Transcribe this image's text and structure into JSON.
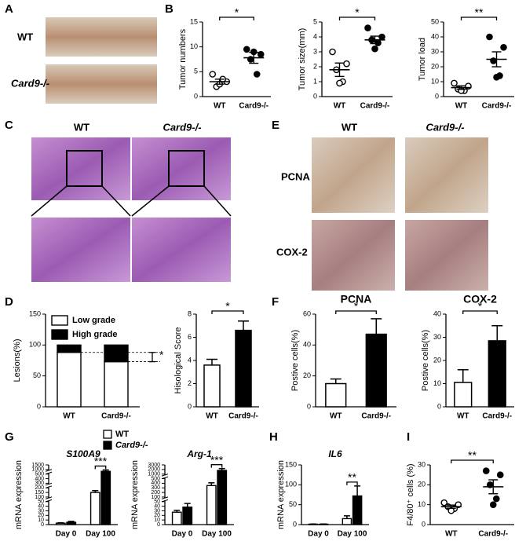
{
  "panel_labels": [
    "A",
    "B",
    "C",
    "D",
    "E",
    "F",
    "G",
    "H",
    "I"
  ],
  "photo_a": {
    "rows": [
      "WT",
      "Card9-/-"
    ]
  },
  "photo_c": {
    "columns": [
      "WT",
      "Card9-/-"
    ]
  },
  "photo_e": {
    "columns": [
      "WT",
      "Card9-/-"
    ],
    "rows": [
      "PCNA",
      "COX-2"
    ]
  },
  "chart_data": [
    {
      "type": "dot",
      "ylabel": "Tumor numbers",
      "categories": [
        "WT",
        "Card9-/-"
      ],
      "points": [
        [
          4.5,
          3,
          2,
          3.5,
          2.5
        ],
        [
          9.5,
          8.5,
          7.5,
          4.5,
          9
        ]
      ],
      "means": [
        3,
        7.8
      ],
      "errors": [
        0.5,
        1.1
      ],
      "markers": [
        "open",
        "filled"
      ],
      "ylim": [
        0,
        15
      ],
      "yticks": [
        0,
        5,
        10,
        15
      ],
      "significance": "*"
    },
    {
      "type": "dot",
      "ylabel": "Tumor size(mm)",
      "categories": [
        "WT",
        "Card9-/-"
      ],
      "points": [
        [
          3,
          2.2,
          1.8,
          1,
          0.9
        ],
        [
          4.6,
          4,
          3.8,
          3.6,
          3.2
        ]
      ],
      "means": [
        1.8,
        3.8
      ],
      "errors": [
        0.45,
        0.25
      ],
      "markers": [
        "open",
        "filled"
      ],
      "ylim": [
        0,
        5
      ],
      "yticks": [
        0,
        1,
        2,
        3,
        4,
        5
      ],
      "significance": "*"
    },
    {
      "type": "dot",
      "ylabel": "Tumor load",
      "categories": [
        "WT",
        "Card9-/-"
      ],
      "points": [
        [
          9,
          7,
          5,
          4,
          4
        ],
        [
          40,
          33,
          24,
          14,
          13
        ]
      ],
      "means": [
        6,
        25
      ],
      "errors": [
        1.2,
        5
      ],
      "markers": [
        "open",
        "filled"
      ],
      "ylim": [
        0,
        50
      ],
      "yticks": [
        0,
        10,
        20,
        30,
        40,
        50
      ],
      "significance": "**"
    },
    {
      "type": "stacked_bar",
      "ylabel": "Lesions(%)",
      "categories": [
        "WT",
        "Card9-/-"
      ],
      "series": [
        {
          "name": "Low grade",
          "color": "#ffffff",
          "values": [
            88,
            73
          ]
        },
        {
          "name": "High grade",
          "color": "#000000",
          "values": [
            12,
            27
          ]
        }
      ],
      "ylim": [
        0,
        150
      ],
      "yticks": [
        0,
        50,
        100,
        150
      ],
      "significance": "*"
    },
    {
      "type": "bar",
      "ylabel": "Hisological Score",
      "categories": [
        "WT",
        "Card9-/-"
      ],
      "values": [
        3.6,
        6.6
      ],
      "errors": [
        0.5,
        0.8
      ],
      "colors": [
        "#ffffff",
        "#000000"
      ],
      "ylim": [
        0,
        8
      ],
      "yticks": [
        0,
        2,
        4,
        6,
        8
      ],
      "significance": "*"
    },
    {
      "type": "bar",
      "title": "PCNA",
      "ylabel": "Postive cells(%)",
      "categories": [
        "WT",
        "Card9-/-"
      ],
      "values": [
        15,
        47
      ],
      "errors": [
        3,
        10
      ],
      "colors": [
        "#ffffff",
        "#000000"
      ],
      "ylim": [
        0,
        60
      ],
      "yticks": [
        0,
        20,
        40,
        60
      ],
      "significance": "*"
    },
    {
      "type": "bar",
      "title": "COX-2",
      "ylabel": "Postive cells(%)",
      "categories": [
        "WT",
        "Card9-/-"
      ],
      "values": [
        10.5,
        28.5
      ],
      "errors": [
        5.5,
        6.5
      ],
      "colors": [
        "#ffffff",
        "#000000"
      ],
      "ylim": [
        0,
        40
      ],
      "yticks": [
        0,
        10,
        20,
        30,
        40
      ],
      "significance": "*"
    },
    {
      "type": "grouped_bar",
      "title": "S100A9",
      "ylabel": "mRNA expression",
      "categories": [
        "Day 0",
        "Day 100"
      ],
      "series": [
        {
          "name": "WT",
          "color": "#ffffff",
          "values": [
            3,
            150
          ],
          "errors": [
            1,
            20
          ]
        },
        {
          "name": "Card9-/-",
          "color": "#000000",
          "values": [
            5,
            800
          ],
          "errors": [
            2,
            150
          ]
        }
      ],
      "ylim": [
        0,
        1500
      ],
      "yticks": [
        0,
        10,
        20,
        30,
        40,
        50,
        100,
        150,
        200,
        300,
        400,
        500,
        1000,
        1500
      ],
      "ybreaks": [
        50,
        200,
        500
      ],
      "significance": "***",
      "legend": true
    },
    {
      "type": "grouped_bar",
      "title": "Arg-1",
      "ylabel": "mRNA expression",
      "categories": [
        "Day 0",
        "Day 100"
      ],
      "series": [
        {
          "name": "WT",
          "color": "#ffffff",
          "values": [
            27,
            350
          ],
          "errors": [
            4,
            60
          ]
        },
        {
          "name": "Card9-/-",
          "color": "#000000",
          "values": [
            38,
            1800
          ],
          "errors": [
            8,
            400
          ]
        }
      ],
      "ylim": [
        0,
        3000
      ],
      "yticks": [
        0,
        10,
        20,
        30,
        40,
        50,
        100,
        200,
        300,
        400,
        500,
        1000,
        2000,
        3000
      ],
      "ybreaks": [
        50,
        500
      ],
      "significance": "***"
    },
    {
      "type": "grouped_bar",
      "title": "IL6",
      "ylabel": "mRNA expression",
      "categories": [
        "Day 0",
        "Day 100"
      ],
      "series": [
        {
          "name": "WT",
          "color": "#ffffff",
          "values": [
            1,
            15
          ],
          "errors": [
            0.5,
            7
          ]
        },
        {
          "name": "Card9-/-",
          "color": "#000000",
          "values": [
            1,
            72
          ],
          "errors": [
            0.5,
            25
          ]
        }
      ],
      "ylim": [
        0,
        150
      ],
      "yticks": [
        0,
        50,
        100,
        150
      ],
      "significance": "**"
    },
    {
      "type": "dot",
      "ylabel": "F4/80⁺ cells (%)",
      "categories": [
        "WT",
        "Card9-/-"
      ],
      "points": [
        [
          11,
          10,
          9,
          8,
          7
        ],
        [
          27,
          25,
          20,
          13,
          10
        ]
      ],
      "means": [
        9,
        19
      ],
      "errors": [
        0.8,
        3.5
      ],
      "markers": [
        "open",
        "filled"
      ],
      "ylim": [
        0,
        30
      ],
      "yticks": [
        0,
        10,
        20,
        30
      ],
      "significance": "**"
    }
  ]
}
